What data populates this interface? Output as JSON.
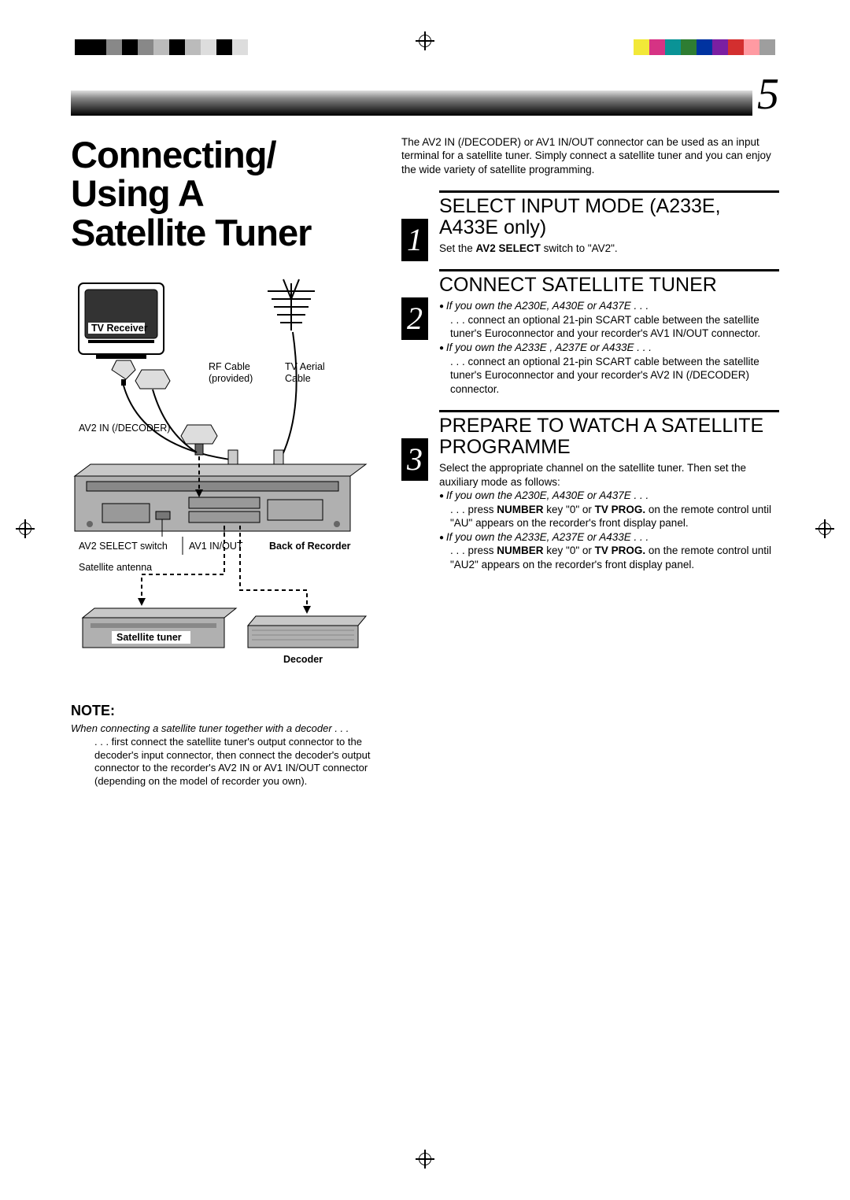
{
  "page_number": "5",
  "title_lines": [
    "Connecting/",
    "Using A",
    "Satellite Tuner"
  ],
  "reg_swatches": [
    "#f2e838",
    "#d63384",
    "#0a9396",
    "#2e7d32",
    "#0033a0",
    "#7b1fa2",
    "#d32f2f",
    "#ff9aa2",
    "#9e9e9e"
  ],
  "diagram": {
    "tv_receiver": "TV Receiver",
    "rf_cable_1": "RF Cable",
    "rf_cable_2": "(provided)",
    "tv_aerial_1": "TV Aerial",
    "tv_aerial_2": "Cable",
    "av2_in": "AV2 IN (/DECODER)",
    "av2_select": "AV2 SELECT switch",
    "av1_inout": "AV1 IN/OUT",
    "back_of_rec": "Back of Recorder",
    "sat_antenna": "Satellite antenna",
    "sat_tuner": "Satellite tuner",
    "decoder": "Decoder"
  },
  "note": {
    "head": "NOTE:",
    "line": "When connecting a satellite tuner together with a decoder . . .",
    "body": ". . . first connect the satellite tuner's output connector to the decoder's input connector, then connect the decoder's output connector to the recorder's AV2 IN or AV1 IN/OUT connector (depending on the model of recorder you own)."
  },
  "intro": "The AV2 IN (/DECODER) or AV1 IN/OUT connector can be used as an input terminal for a satellite tuner. Simply connect a satellite tuner and you can enjoy the wide variety of satellite programming.",
  "steps": [
    {
      "num": "1",
      "title": "SELECT INPUT MODE (A233E, A433E only)",
      "body_html": "Set the <strong>AV2 SELECT</strong> switch to \"AV2\"."
    },
    {
      "num": "2",
      "title": "CONNECT SATELLITE TUNER",
      "items": [
        {
          "lead": "If you own the A230E, A430E or A437E . . .",
          "text": ". . . connect an optional 21-pin SCART cable between the satellite tuner's Euroconnector and your recorder's AV1 IN/OUT connector."
        },
        {
          "lead": "If you own the A233E , A237E or A433E . . .",
          "text": ". . . connect an optional 21-pin SCART cable between the satellite tuner's Euroconnector and your recorder's AV2 IN (/DECODER) connector."
        }
      ]
    },
    {
      "num": "3",
      "title": "PREPARE TO WATCH A SATELLITE PROGRAMME",
      "pre": "Select the appropriate channel on the satellite tuner. Then set the auxiliary mode as follows:",
      "items": [
        {
          "lead": "If you own the A230E, A430E or A437E . . .",
          "text": ". . .  press <strong>NUMBER</strong> key \"0\" or <strong>TV PROG.</strong> on the remote control until \"AU\" appears on the recorder's front display panel."
        },
        {
          "lead": "If you own the A233E, A237E or A433E . . .",
          "text": ". . . press <strong>NUMBER</strong> key \"0\" or <strong>TV PROG.</strong> on the remote control until \"AU2\" appears on the recorder's front display panel."
        }
      ]
    }
  ]
}
